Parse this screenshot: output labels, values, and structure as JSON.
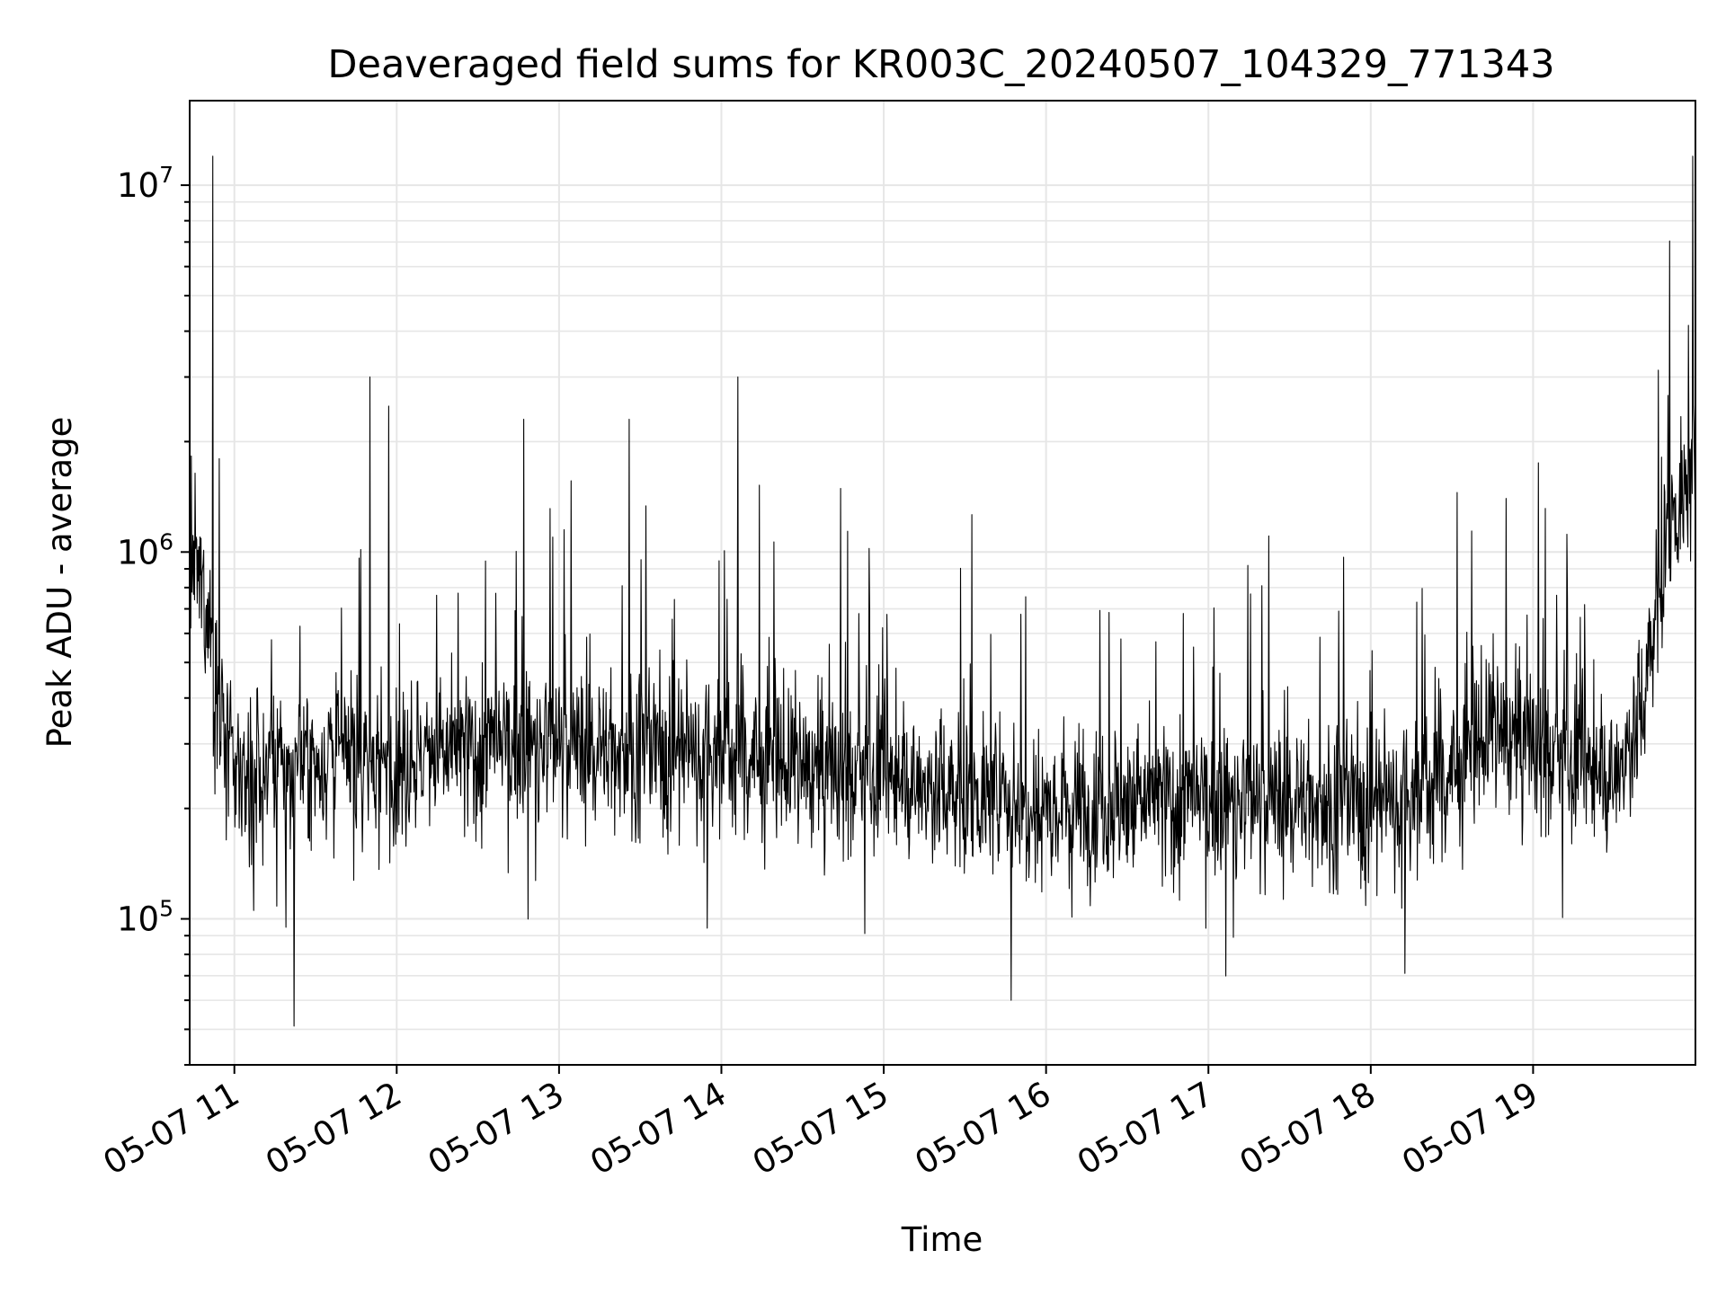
{
  "chart_data": {
    "type": "line",
    "title": "Deaveraged field sums for KR003C_20240507_104329_771343",
    "xlabel": "Time",
    "ylabel": "Peak ADU - average",
    "yscale": "log",
    "ylim": [
      40000,
      17000000
    ],
    "xlim": [
      "2024-05-07 10:43:29",
      "2024-05-07 20:00:00"
    ],
    "grid": true,
    "line_color": "#000000",
    "grid_color": "#e6e6e6",
    "x_ticks": [
      {
        "value": "2024-05-07 11:00",
        "label": "05-07 11"
      },
      {
        "value": "2024-05-07 12:00",
        "label": "05-07 12"
      },
      {
        "value": "2024-05-07 13:00",
        "label": "05-07 13"
      },
      {
        "value": "2024-05-07 14:00",
        "label": "05-07 14"
      },
      {
        "value": "2024-05-07 15:00",
        "label": "05-07 15"
      },
      {
        "value": "2024-05-07 16:00",
        "label": "05-07 16"
      },
      {
        "value": "2024-05-07 17:00",
        "label": "05-07 17"
      },
      {
        "value": "2024-05-07 18:00",
        "label": "05-07 18"
      },
      {
        "value": "2024-05-07 19:00",
        "label": "05-07 19"
      }
    ],
    "y_ticks": [
      {
        "value": 100000,
        "base": "10",
        "exp": "5"
      },
      {
        "value": 1000000,
        "base": "10",
        "exp": "6"
      },
      {
        "value": 10000000,
        "base": "10",
        "exp": "7"
      }
    ],
    "series": [
      {
        "x": [
          "2024-05-07 10:45",
          "2024-05-07 10:50",
          "2024-05-07 10:55",
          "2024-05-07 11:00",
          "2024-05-07 11:10",
          "2024-05-07 11:20",
          "2024-05-07 11:30",
          "2024-05-07 11:40",
          "2024-05-07 11:50",
          "2024-05-07 12:00",
          "2024-05-07 12:15",
          "2024-05-07 12:30",
          "2024-05-07 12:45",
          "2024-05-07 13:00",
          "2024-05-07 13:15",
          "2024-05-07 13:30",
          "2024-05-07 13:45",
          "2024-05-07 14:00",
          "2024-05-07 14:15",
          "2024-05-07 14:30",
          "2024-05-07 14:45",
          "2024-05-07 15:00",
          "2024-05-07 15:15",
          "2024-05-07 15:30",
          "2024-05-07 15:45",
          "2024-05-07 16:00",
          "2024-05-07 16:15",
          "2024-05-07 16:30",
          "2024-05-07 16:45",
          "2024-05-07 17:00",
          "2024-05-07 17:15",
          "2024-05-07 17:30",
          "2024-05-07 17:45",
          "2024-05-07 18:00",
          "2024-05-07 18:15",
          "2024-05-07 18:30",
          "2024-05-07 18:45",
          "2024-05-07 19:00",
          "2024-05-07 19:15",
          "2024-05-07 19:30",
          "2024-05-07 19:40",
          "2024-05-07 19:50",
          "2024-05-07 20:00"
        ],
        "typical": [
          900000,
          700000,
          350000,
          250000,
          250000,
          260000,
          270000,
          280000,
          270000,
          270000,
          280000,
          290000,
          300000,
          300000,
          290000,
          290000,
          290000,
          290000,
          270000,
          260000,
          250000,
          240000,
          230000,
          220000,
          210000,
          210000,
          210000,
          210000,
          210000,
          210000,
          210000,
          210000,
          210000,
          210000,
          220000,
          250000,
          330000,
          300000,
          260000,
          240000,
          360000,
          1200000,
          1600000
        ],
        "spikes": [
          {
            "x": "2024-05-07 10:52",
            "y": 12000000
          },
          {
            "x": "2024-05-07 11:22",
            "y": 51000
          },
          {
            "x": "2024-05-07 11:50",
            "y": 3000000
          },
          {
            "x": "2024-05-07 11:57",
            "y": 2500000
          },
          {
            "x": "2024-05-07 12:47",
            "y": 2300000
          },
          {
            "x": "2024-05-07 13:26",
            "y": 2300000
          },
          {
            "x": "2024-05-07 14:06",
            "y": 3000000
          },
          {
            "x": "2024-05-07 15:47",
            "y": 60000
          },
          {
            "x": "2024-05-07 18:50",
            "y": 1400000
          },
          {
            "x": "2024-05-07 19:59",
            "y": 12000000
          }
        ]
      }
    ]
  }
}
